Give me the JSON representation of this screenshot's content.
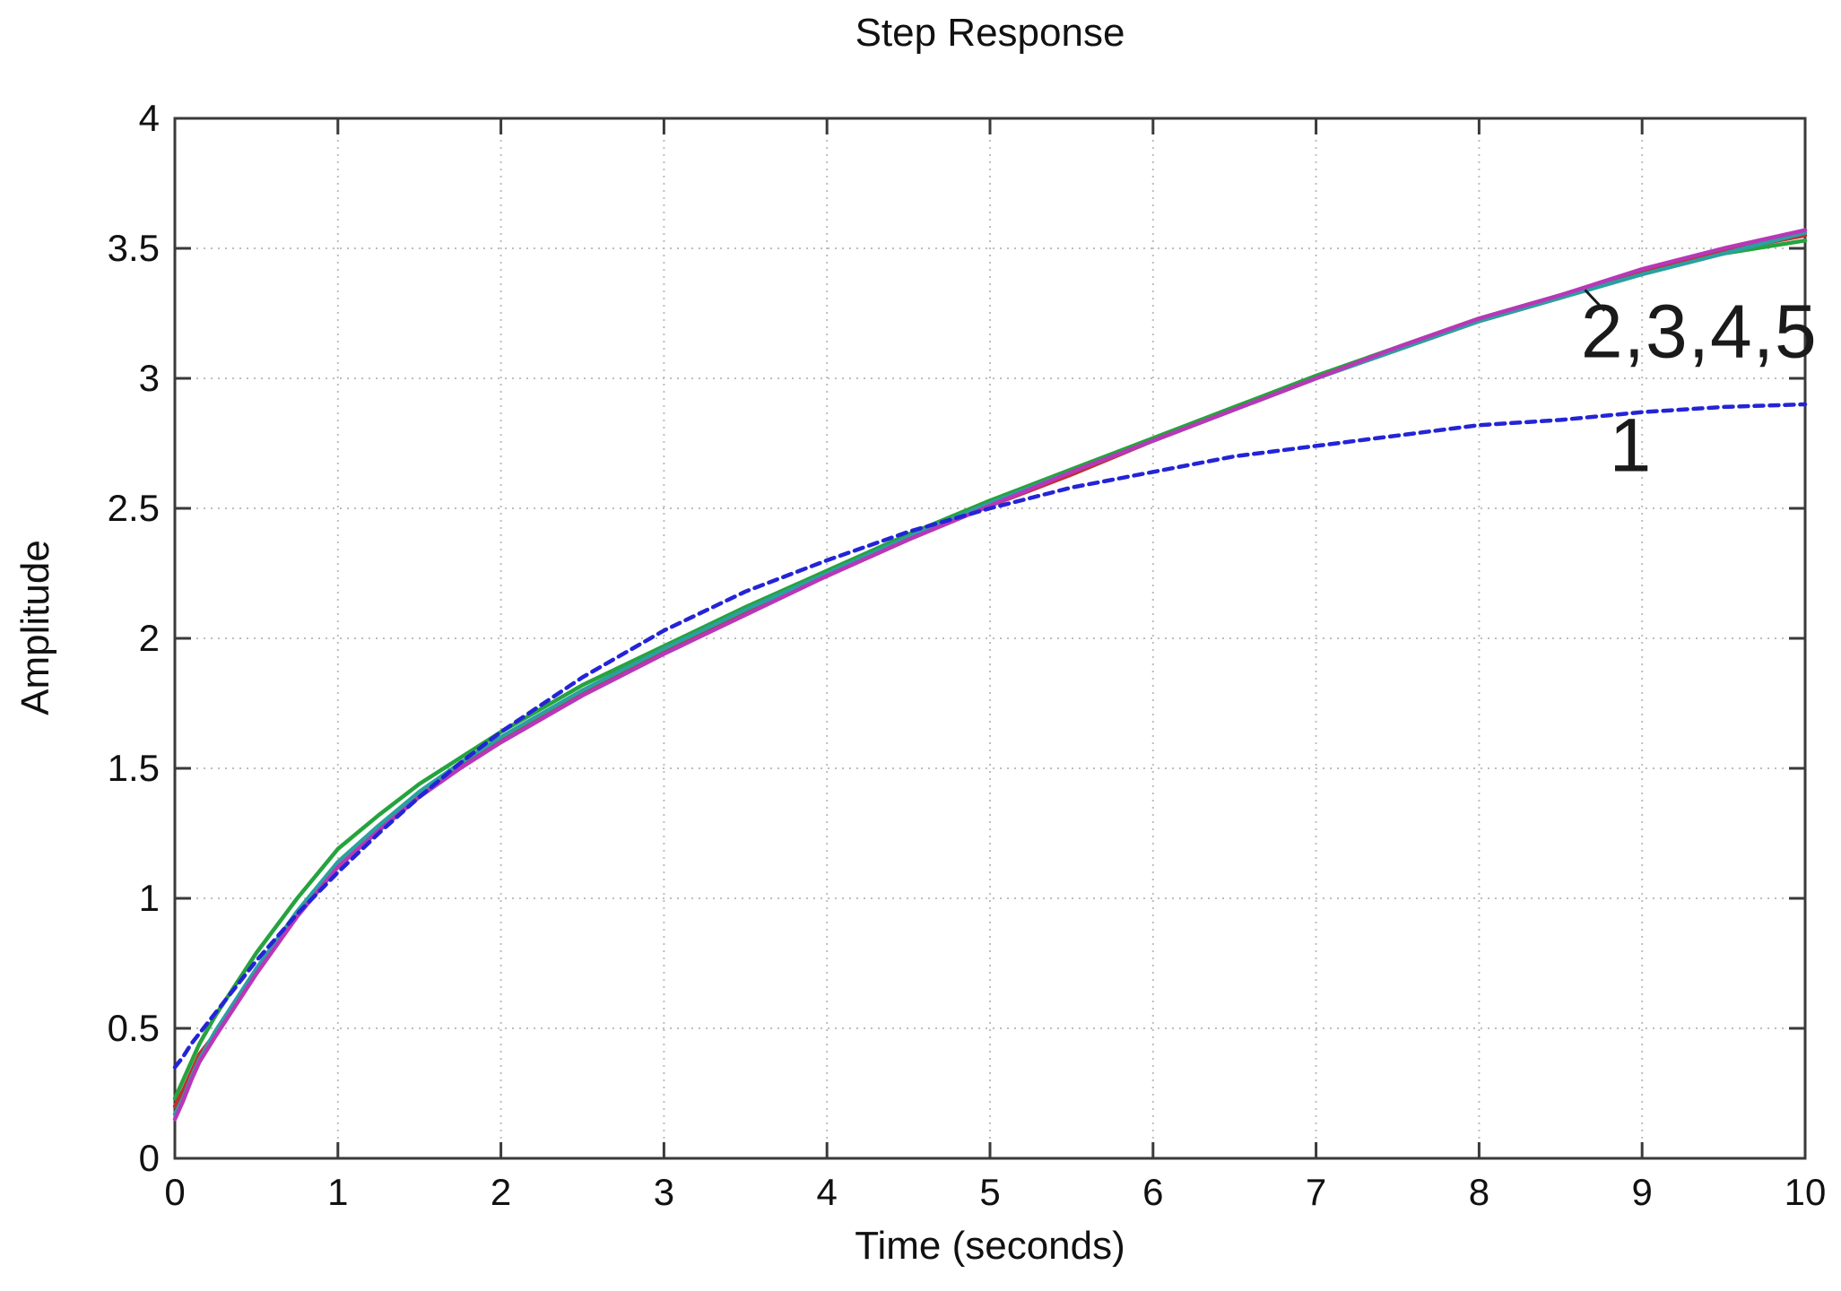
{
  "chart_data": {
    "type": "line",
    "title": "Step Response",
    "xlabel": "Time (seconds)",
    "ylabel": "Amplitude",
    "xlim": [
      0,
      10
    ],
    "ylim": [
      0,
      4
    ],
    "grid": true,
    "x_ticks": [
      0,
      1,
      2,
      3,
      4,
      5,
      6,
      7,
      8,
      9,
      10
    ],
    "x_tick_labels": [
      "0",
      "1",
      "2",
      "3",
      "4",
      "5",
      "6",
      "7",
      "8",
      "9",
      "10"
    ],
    "y_ticks": [
      0,
      0.5,
      1,
      1.5,
      2,
      2.5,
      3,
      3.5,
      4
    ],
    "y_tick_labels": [
      "0",
      "0.5",
      "1",
      "1.5",
      "2",
      "2.5",
      "3",
      "3.5",
      "4"
    ],
    "axis_color": "#3a3a3a",
    "grid_color": "#bdbdbd",
    "x": [
      0,
      0.05,
      0.1,
      0.15,
      0.25,
      0.5,
      0.75,
      1,
      1.25,
      1.5,
      1.75,
      2,
      2.5,
      3,
      3.5,
      4,
      4.5,
      5,
      5.5,
      6,
      6.5,
      7,
      7.5,
      8,
      8.5,
      9,
      9.5,
      10
    ],
    "series": [
      {
        "name": "2",
        "color": "#26a33e",
        "dash": "",
        "values": [
          0.23,
          0.3,
          0.37,
          0.44,
          0.55,
          0.79,
          1.0,
          1.19,
          1.32,
          1.44,
          1.54,
          1.64,
          1.82,
          1.97,
          2.12,
          2.26,
          2.4,
          2.53,
          2.65,
          2.77,
          2.89,
          3.01,
          3.12,
          3.23,
          3.32,
          3.41,
          3.48,
          3.53
        ]
      },
      {
        "name": "3",
        "color": "#c03030",
        "dash": "",
        "values": [
          0.2,
          0.26,
          0.33,
          0.4,
          0.48,
          0.72,
          0.94,
          1.13,
          1.27,
          1.4,
          1.51,
          1.61,
          1.79,
          1.95,
          2.1,
          2.24,
          2.38,
          2.51,
          2.63,
          2.76,
          2.88,
          3.0,
          3.11,
          3.22,
          3.31,
          3.41,
          3.49,
          3.55
        ]
      },
      {
        "name": "4",
        "color": "#2aa0a0",
        "dash": "",
        "values": [
          0.17,
          0.23,
          0.31,
          0.38,
          0.49,
          0.73,
          0.95,
          1.14,
          1.28,
          1.41,
          1.52,
          1.62,
          1.8,
          1.96,
          2.11,
          2.25,
          2.39,
          2.52,
          2.64,
          2.76,
          2.88,
          3.0,
          3.11,
          3.22,
          3.31,
          3.4,
          3.48,
          3.56
        ]
      },
      {
        "name": "5",
        "color": "#b837b8",
        "dash": "",
        "values": [
          0.15,
          0.22,
          0.3,
          0.37,
          0.47,
          0.71,
          0.93,
          1.12,
          1.26,
          1.39,
          1.5,
          1.6,
          1.78,
          1.94,
          2.09,
          2.24,
          2.38,
          2.51,
          2.64,
          2.76,
          2.88,
          3.0,
          3.12,
          3.23,
          3.32,
          3.42,
          3.5,
          3.57
        ]
      },
      {
        "name": "1",
        "color": "#2424d6",
        "dash": "10 7",
        "values": [
          0.35,
          0.39,
          0.44,
          0.48,
          0.56,
          0.76,
          0.94,
          1.1,
          1.25,
          1.39,
          1.52,
          1.64,
          1.85,
          2.03,
          2.18,
          2.3,
          2.41,
          2.5,
          2.58,
          2.64,
          2.7,
          2.74,
          2.78,
          2.82,
          2.84,
          2.87,
          2.89,
          2.9
        ]
      }
    ],
    "annotations": [
      {
        "text": "2,3,4,5",
        "x": 9.35,
        "y": 3.18,
        "leader": {
          "x1": 8.65,
          "y1": 3.34,
          "x2": 8.77,
          "y2": 3.26
        }
      },
      {
        "text": "1",
        "x": 8.93,
        "y": 2.74
      }
    ]
  }
}
